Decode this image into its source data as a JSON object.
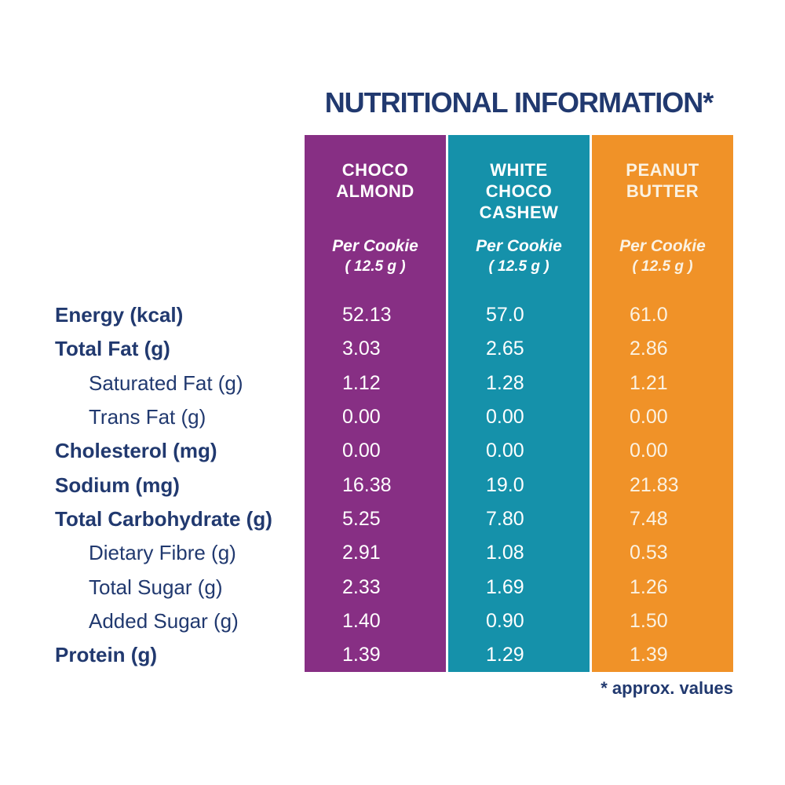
{
  "title": "NUTRITIONAL INFORMATION*",
  "footnote": "* approx. values",
  "colors": {
    "purple": "#872f84",
    "teal": "#1591aa",
    "orange": "#f09228",
    "navy": "#21396f",
    "cream": "#fbf2e2",
    "white": "#ffffff"
  },
  "columns": [
    {
      "name": "CHOCO ALMOND",
      "serving": "Per Cookie",
      "serving_size": "( 12.5 g )",
      "color": "#872f84"
    },
    {
      "name": "WHITE CHOCO CASHEW",
      "serving": "Per Cookie",
      "serving_size": "( 12.5 g )",
      "color": "#1591aa"
    },
    {
      "name": "PEANUT BUTTER",
      "serving": "Per Cookie",
      "serving_size": "( 12.5 g )",
      "color": "#f09228"
    }
  ],
  "rows": [
    {
      "label": "Energy (kcal)",
      "style": "bold",
      "values": [
        "52.13",
        "57.0",
        "61.0"
      ]
    },
    {
      "label": "Total Fat (g)",
      "style": "bold",
      "values": [
        "3.03",
        "2.65",
        "2.86"
      ]
    },
    {
      "label": "Saturated Fat (g)",
      "style": "indent",
      "values": [
        "1.12",
        "1.28",
        "1.21"
      ]
    },
    {
      "label": "Trans Fat (g)",
      "style": "indent",
      "values": [
        "0.00",
        "0.00",
        "0.00"
      ]
    },
    {
      "label": "Cholesterol (mg)",
      "style": "bold",
      "values": [
        "0.00",
        "0.00",
        "0.00"
      ]
    },
    {
      "label": "Sodium (mg)",
      "style": "bold",
      "values": [
        "16.38",
        "19.0",
        "21.83"
      ]
    },
    {
      "label": "Total Carbohydrate (g)",
      "style": "bold",
      "values": [
        "5.25",
        "7.80",
        "7.48"
      ]
    },
    {
      "label": "Dietary Fibre (g)",
      "style": "indent",
      "values": [
        "2.91",
        "1.08",
        "0.53"
      ]
    },
    {
      "label": "Total Sugar (g)",
      "style": "indent",
      "values": [
        "2.33",
        "1.69",
        "1.26"
      ]
    },
    {
      "label": "Added Sugar (g)",
      "style": "indent",
      "values": [
        "1.40",
        "0.90",
        "1.50"
      ]
    },
    {
      "label": "Protein (g)",
      "style": "bold",
      "values": [
        "1.39",
        "1.29",
        "1.39"
      ]
    }
  ]
}
